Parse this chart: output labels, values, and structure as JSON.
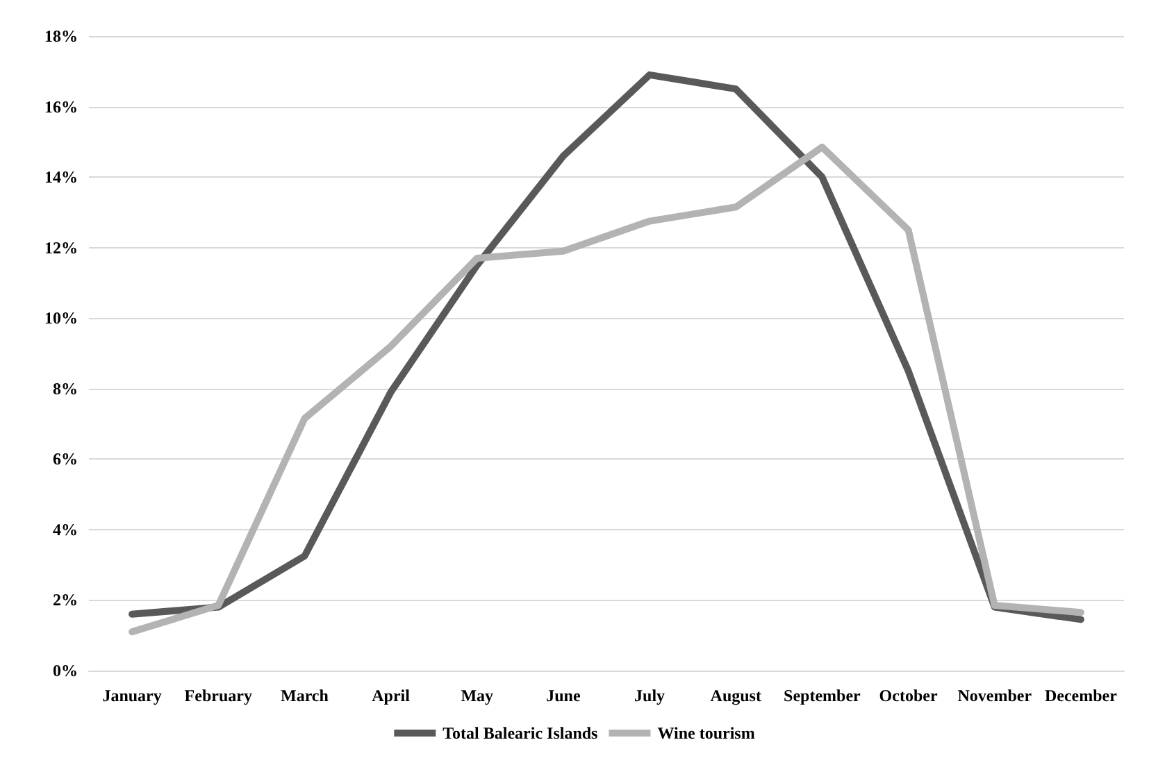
{
  "chart_data": {
    "type": "line",
    "categories": [
      "January",
      "February",
      "March",
      "April",
      "May",
      "June",
      "July",
      "August",
      "September",
      "October",
      "November",
      "December"
    ],
    "series": [
      {
        "name": "Total Balearic Islands",
        "color": "#595959",
        "values": [
          1.6,
          1.8,
          3.25,
          7.9,
          11.5,
          14.6,
          16.9,
          16.5,
          14.0,
          8.5,
          1.8,
          1.45
        ]
      },
      {
        "name": "Wine tourism",
        "color": "#b3b3b3",
        "values": [
          1.1,
          1.85,
          7.15,
          9.2,
          11.7,
          11.9,
          12.75,
          13.15,
          14.85,
          12.5,
          1.85,
          1.65
        ]
      }
    ],
    "ylim": [
      0,
      18
    ],
    "yticks": [
      {
        "value": 0,
        "label": "0%"
      },
      {
        "value": 2,
        "label": "2%"
      },
      {
        "value": 4,
        "label": "4%"
      },
      {
        "value": 6,
        "label": "6%"
      },
      {
        "value": 8,
        "label": "8%"
      },
      {
        "value": 10,
        "label": "10%"
      },
      {
        "value": 12,
        "label": "12%"
      },
      {
        "value": 14,
        "label": "14%"
      },
      {
        "value": 16,
        "label": "16%"
      },
      {
        "value": 18,
        "label": "18%"
      }
    ],
    "grid": "y",
    "legend": "bottom",
    "marker": "none",
    "line_style": "solid"
  }
}
